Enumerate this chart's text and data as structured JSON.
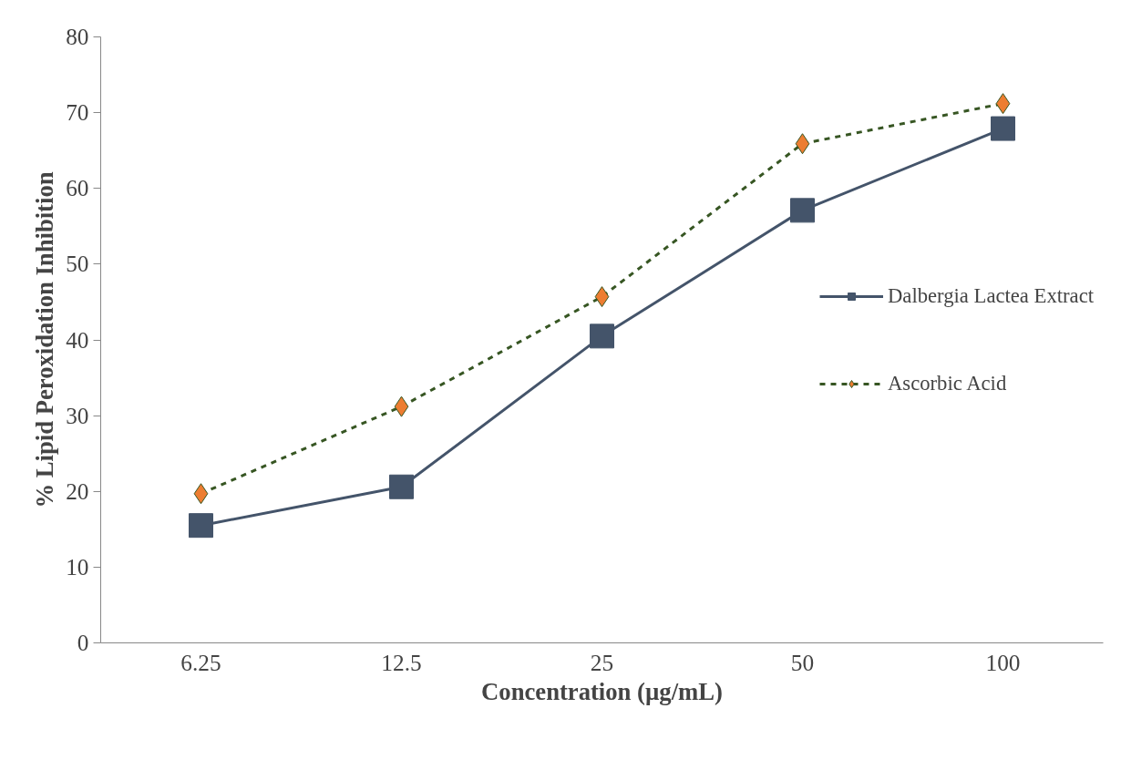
{
  "chart_data": {
    "type": "line",
    "xlabel": "Concentration (µg/mL)",
    "ylabel": "% Lipid Peroxidation Inhibition",
    "categories": [
      "6.25",
      "12.5",
      "25",
      "50",
      "100"
    ],
    "series": [
      {
        "name": "Dalbergia Lactea Extract",
        "color": "#44546a",
        "marker": "square",
        "line_style": "solid",
        "values": [
          15.5,
          20.6,
          40.5,
          57.1,
          67.9
        ]
      },
      {
        "name": "Ascorbic Acid",
        "color": "#375623",
        "colors": [
          "#ed7d31",
          "#ed7d31",
          "#ed7d31",
          "#ed7d31",
          "#ed7d31"
        ],
        "marker": "diamond",
        "line_style": "dashed",
        "values": [
          19.7,
          31.2,
          45.7,
          65.9,
          71.2
        ]
      }
    ],
    "ylim": [
      0,
      80
    ],
    "yticks": [
      0,
      10,
      20,
      30,
      40,
      50,
      60,
      70,
      80
    ],
    "grid": false,
    "legend": "right"
  }
}
